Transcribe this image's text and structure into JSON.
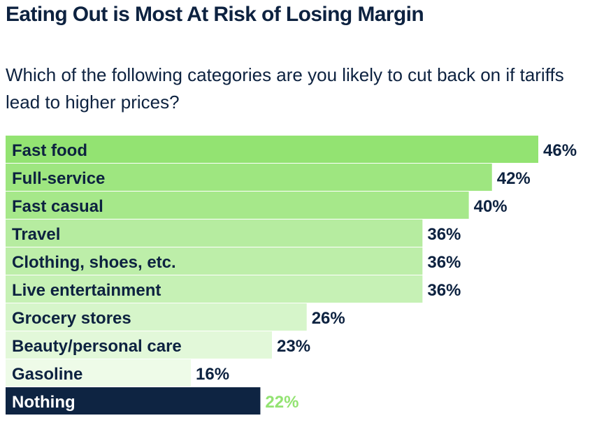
{
  "title": "Eating Out is Most At Risk of Losing Margin",
  "subtitle": "Which of the following categories are you likely to cut back on if tariffs lead to higher prices?",
  "chart_data": {
    "type": "bar",
    "orientation": "horizontal",
    "title": "Eating Out is Most At Risk of Losing Margin",
    "subtitle": "Which of the following categories are you likely to cut back on if tariffs lead to higher prices?",
    "xlabel": "",
    "ylabel": "",
    "xlim": [
      0,
      46
    ],
    "grid": false,
    "categories": [
      "Fast food",
      "Full-service",
      "Fast casual",
      "Travel",
      "Clothing, shoes, etc.",
      "Live entertainment",
      "Grocery stores",
      "Beauty/personal care",
      "Gasoline",
      "Nothing"
    ],
    "values": [
      46,
      42,
      40,
      36,
      36,
      36,
      26,
      23,
      16,
      22
    ],
    "value_labels": [
      "46%",
      "42%",
      "40%",
      "36%",
      "36%",
      "36%",
      "26%",
      "23%",
      "16%",
      "22%"
    ],
    "colors": [
      "#93e372",
      "#9ee680",
      "#a6e88a",
      "#b6eca0",
      "#bdeea9",
      "#c6f1b5",
      "#d6f5ca",
      "#e2f8d9",
      "#eefbe8",
      "#0e2442"
    ],
    "label_colors": [
      "#0d2240",
      "#0d2240",
      "#0d2240",
      "#0d2240",
      "#0d2240",
      "#0d2240",
      "#0d2240",
      "#0d2240",
      "#0d2240",
      "#ffffff"
    ],
    "value_colors": [
      "#0d2240",
      "#0d2240",
      "#0d2240",
      "#0d2240",
      "#0d2240",
      "#0d2240",
      "#0d2240",
      "#0d2240",
      "#0d2240",
      "#93e372"
    ]
  }
}
